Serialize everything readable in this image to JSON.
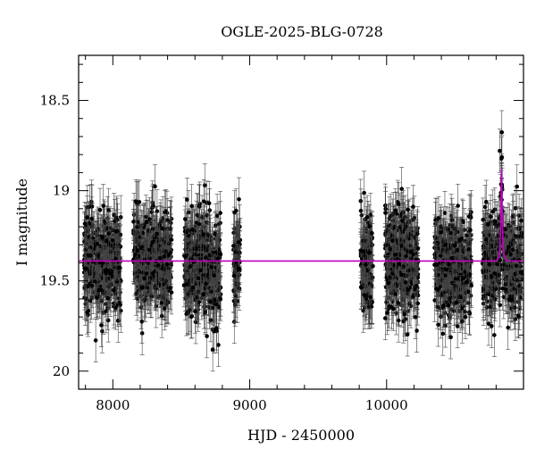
{
  "chart_data": {
    "type": "scatter",
    "title": "OGLE-2025-BLG-0728",
    "xlabel": "HJD - 2450000",
    "ylabel": "I magnitude",
    "xlim": [
      7750,
      11000
    ],
    "ylim": [
      20.1,
      18.25
    ],
    "y_inverted": true,
    "x_ticks": [
      {
        "value": 8000,
        "label": "8000"
      },
      {
        "value": 9000,
        "label": "9000"
      },
      {
        "value": 10000,
        "label": "10000"
      }
    ],
    "y_ticks": [
      {
        "value": 18.5,
        "label": "18.5"
      },
      {
        "value": 19,
        "label": "19"
      },
      {
        "value": 19.5,
        "label": "19.5"
      },
      {
        "value": 20,
        "label": "20"
      }
    ],
    "baseline_mag": 19.39,
    "observing_seasons": [
      {
        "start": 7790,
        "end": 8060,
        "mean_mag": 19.4,
        "scatter": 0.13
      },
      {
        "start": 8150,
        "end": 8430,
        "mean_mag": 19.38,
        "scatter": 0.13
      },
      {
        "start": 8520,
        "end": 8790,
        "mean_mag": 19.4,
        "scatter": 0.14
      },
      {
        "start": 8880,
        "end": 8930,
        "mean_mag": 19.38,
        "scatter": 0.12
      },
      {
        "start": 9810,
        "end": 9900,
        "mean_mag": 19.4,
        "scatter": 0.14
      },
      {
        "start": 9990,
        "end": 10230,
        "mean_mag": 19.4,
        "scatter": 0.14
      },
      {
        "start": 10350,
        "end": 10620,
        "mean_mag": 19.42,
        "scatter": 0.14
      },
      {
        "start": 10700,
        "end": 10990,
        "mean_mag": 19.42,
        "scatter": 0.13
      }
    ],
    "model": {
      "type": "microlensing",
      "t0": 10840,
      "peak_mag": 18.88,
      "baseline_mag": 19.39,
      "tE": 12,
      "u0": 0.17,
      "color": "#c000c0"
    },
    "errorbar_mag": 0.12,
    "grid": false,
    "legend": "none"
  }
}
